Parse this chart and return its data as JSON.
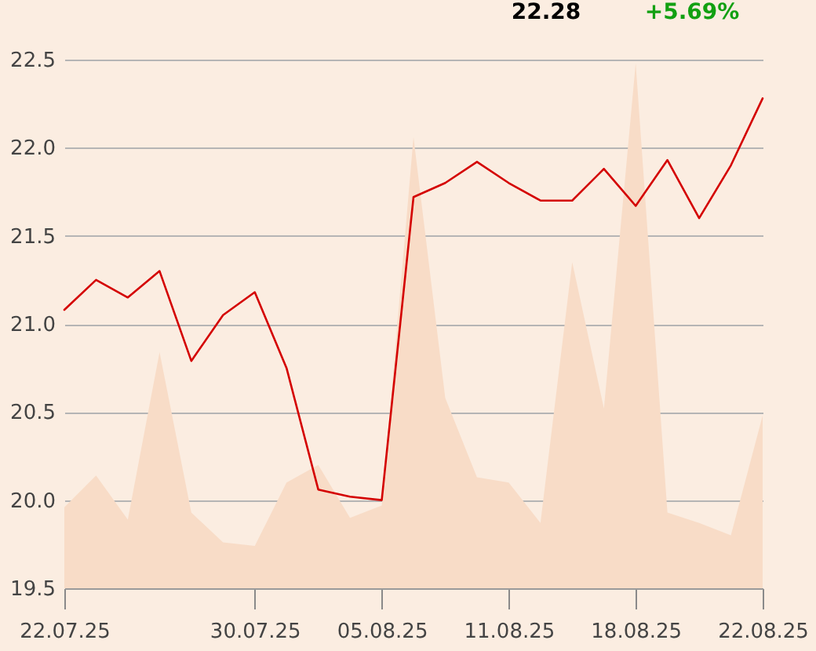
{
  "chart_data": {
    "type": "line",
    "annotations": [
      "22.28",
      "+5.69%"
    ],
    "categories": [
      "22.07.25",
      null,
      null,
      null,
      null,
      null,
      "30.07.25",
      null,
      null,
      null,
      "05.08.25",
      null,
      null,
      null,
      "11.08.25",
      null,
      null,
      null,
      "18.08.25",
      null,
      null,
      null,
      "22.08.25"
    ],
    "series": [
      {
        "type": "area",
        "color": "#f8dcc7",
        "values": [
          19.96,
          20.14,
          19.89,
          20.84,
          19.93,
          19.76,
          19.74,
          20.1,
          20.2,
          19.9,
          19.97,
          22.06,
          20.58,
          20.13,
          20.1,
          19.87,
          21.35,
          20.52,
          22.48,
          19.93,
          19.87,
          19.8,
          20.48
        ]
      },
      {
        "color": "#d40000",
        "values": [
          21.08,
          21.25,
          21.15,
          21.3,
          20.79,
          21.05,
          21.18,
          20.75,
          20.06,
          20.02,
          20.0,
          21.72,
          21.8,
          21.92,
          21.8,
          21.7,
          21.7,
          21.88,
          21.67,
          21.93,
          21.6,
          21.9,
          22.28
        ]
      }
    ],
    "ylim": [
      19.5,
      22.5
    ],
    "yticks": [
      19.5,
      {
        "value": 20,
        "label": "20.0"
      },
      20.5,
      {
        "value": 21,
        "label": "21.0"
      },
      21.5,
      {
        "value": 22,
        "label": "22.0"
      },
      22.5
    ],
    "grid": "y"
  }
}
